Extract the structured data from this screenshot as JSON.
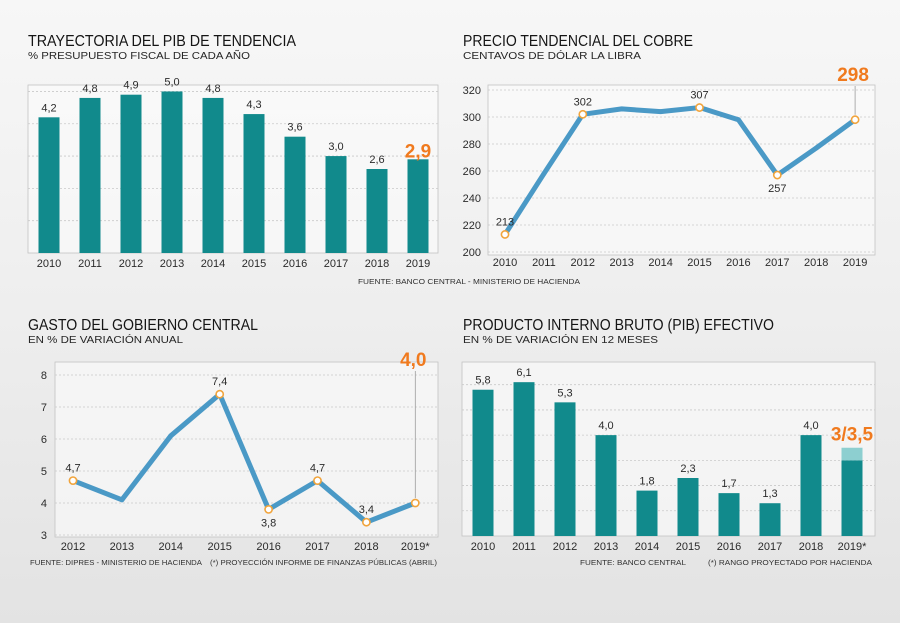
{
  "colors": {
    "bar": "#118a8c",
    "bar_range": "#8dcfd0",
    "line": "#4a99c6",
    "marker": "#f1a43c",
    "highlight": "#f07a1e",
    "grid": "#c9c9c9"
  },
  "chart_data": [
    {
      "type": "bar",
      "title": "TRAYECTORIA DEL PIB DE TENDENCIA",
      "subtitle": "% PRESUPUESTO FISCAL DE CADA AÑO",
      "categories": [
        "2010",
        "2011",
        "2012",
        "2013",
        "2014",
        "2015",
        "2016",
        "2017",
        "2018",
        "2019"
      ],
      "values": [
        4.2,
        4.8,
        4.9,
        5.0,
        4.8,
        4.3,
        3.6,
        3.0,
        2.6,
        2.9
      ],
      "value_labels": [
        "4,2",
        "4,8",
        "4,9",
        "5,0",
        "4,8",
        "4,3",
        "3,6",
        "3,0",
        "2,6",
        "2,9"
      ],
      "highlight_index": 9,
      "ylim": [
        0,
        5.2
      ],
      "grid": true
    },
    {
      "type": "line",
      "title": "PRECIO TENDENCIAL DEL COBRE",
      "subtitle": "CENTAVOS DE DÓLAR LA LIBRA",
      "categories": [
        "2010",
        "2011",
        "2012",
        "2013",
        "2014",
        "2015",
        "2016",
        "2017",
        "2018",
        "2019"
      ],
      "values": [
        213,
        258,
        302,
        306,
        304,
        307,
        298,
        257,
        277,
        298
      ],
      "point_labels": [
        "213",
        null,
        "302",
        null,
        null,
        "307",
        null,
        "257",
        null,
        "298"
      ],
      "highlight_index": 9,
      "yticks": [
        200,
        220,
        240,
        260,
        280,
        300,
        320
      ],
      "ylim": [
        200,
        320
      ],
      "grid": true
    },
    {
      "type": "line",
      "title": "GASTO DEL GOBIERNO CENTRAL",
      "subtitle": "EN % DE VARIACIÓN ANUAL",
      "categories": [
        "2012",
        "2013",
        "2014",
        "2015",
        "2016",
        "2017",
        "2018",
        "2019*"
      ],
      "values": [
        4.7,
        4.1,
        6.1,
        7.4,
        3.8,
        4.7,
        3.4,
        4.0
      ],
      "point_labels": [
        "4,7",
        null,
        null,
        "7,4",
        "3,8",
        "4,7",
        "3,4",
        "4,0"
      ],
      "highlight_index": 7,
      "yticks": [
        3,
        4,
        5,
        6,
        7,
        8
      ],
      "ylim": [
        3,
        8
      ],
      "grid": true
    },
    {
      "type": "bar",
      "title": "PRODUCTO INTERNO BRUTO (PIB) EFECTIVO",
      "subtitle": "EN % DE VARIACIÓN EN 12 MESES",
      "categories": [
        "2010",
        "2011",
        "2012",
        "2013",
        "2014",
        "2015",
        "2016",
        "2017",
        "2018",
        "2019*"
      ],
      "values": [
        5.8,
        6.1,
        5.3,
        4.0,
        1.8,
        2.3,
        1.7,
        1.3,
        4.0,
        3.0
      ],
      "range_high": [
        null,
        null,
        null,
        null,
        null,
        null,
        null,
        null,
        null,
        3.5
      ],
      "value_labels": [
        "5,8",
        "6,1",
        "5,3",
        "4,0",
        "1,8",
        "2,3",
        "1,7",
        "1,3",
        "4,0",
        "3/3,5"
      ],
      "highlight_index": 9,
      "ylim": [
        0,
        6.9
      ],
      "grid": true
    }
  ],
  "sources": {
    "top": "FUENTE: BANCO CENTRAL - MINISTERIO DE HACIENDA",
    "bottom_left": "FUENTE: DIPRES - MINISTERIO DE HACIENDA",
    "bottom_left_note": "(*) PROYECCIÓN INFORME DE FINANZAS PÚBLICAS (ABRIL)",
    "bottom_right": "FUENTE: BANCO CENTRAL",
    "bottom_right_note": "(*) RANGO PROYECTADO POR HACIENDA"
  }
}
